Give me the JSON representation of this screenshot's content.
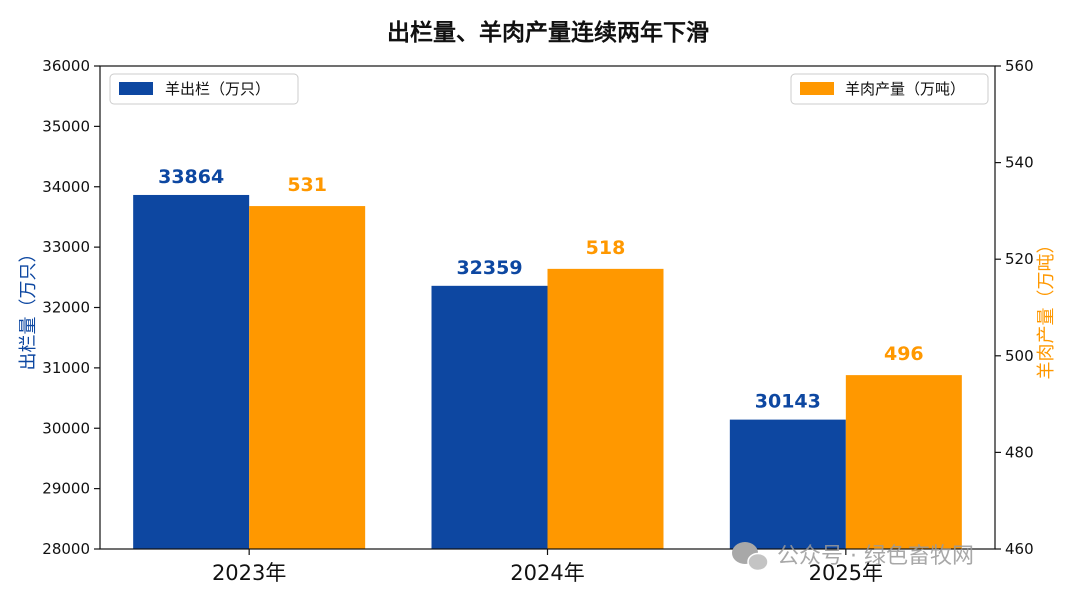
{
  "chart_data": {
    "type": "bar",
    "title": "出栏量、羊肉产量连续两年下滑",
    "categories": [
      "2023年",
      "2024年",
      "2025年"
    ],
    "series": [
      {
        "name": "羊出栏（万只）",
        "axis": "left",
        "color": "#0d47a1",
        "values": [
          33864,
          32359,
          30143
        ]
      },
      {
        "name": "羊肉产量（万吨）",
        "axis": "right",
        "color": "#ff9800",
        "values": [
          531,
          518,
          496
        ]
      }
    ],
    "ylabel_left": "出栏量（万只）",
    "ylabel_right": "羊肉产量（万吨）",
    "ylim_left": [
      28000,
      36000
    ],
    "yticks_left": [
      28000,
      29000,
      30000,
      31000,
      32000,
      33000,
      34000,
      35000,
      36000
    ],
    "ylim_right": [
      460,
      560
    ],
    "yticks_right": [
      460,
      480,
      500,
      520,
      540,
      560
    ],
    "grid": false,
    "legend": {
      "left_series": "top-left",
      "right_series": "top-right"
    }
  },
  "watermark": {
    "icon": "wechat-icon",
    "text": "公众号 · 绿色畜牧网"
  }
}
